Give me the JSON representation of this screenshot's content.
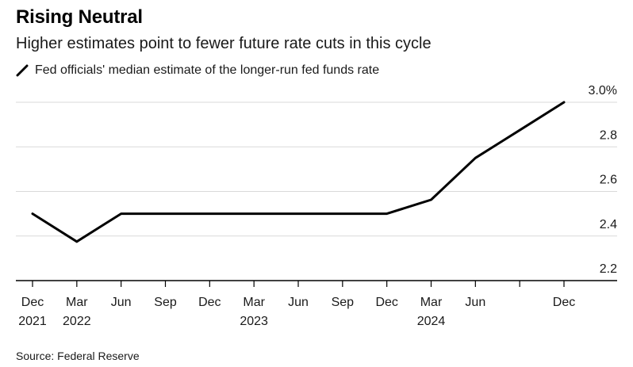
{
  "header": {
    "title": "Rising Neutral",
    "subtitle": "Higher estimates point to fewer future rate cuts in this cycle",
    "legend_label": "Fed officials' median estimate of the longer-run fed funds rate"
  },
  "footer": {
    "source": "Source: Federal Reserve"
  },
  "colors": {
    "line": "#000000",
    "grid": "#d9d9d9",
    "axis": "#000000"
  },
  "chart_data": {
    "type": "line",
    "title": "Rising Neutral",
    "subtitle": "Higher estimates point to fewer future rate cuts in this cycle",
    "xlabel": "",
    "ylabel": "",
    "ylim": [
      2.2,
      3.0
    ],
    "y_ticks": [
      {
        "value": 3.0,
        "label": "3.0%"
      },
      {
        "value": 2.8,
        "label": "2.8"
      },
      {
        "value": 2.6,
        "label": "2.6"
      },
      {
        "value": 2.4,
        "label": "2.4"
      },
      {
        "value": 2.2,
        "label": "2.2"
      }
    ],
    "x_ticks": [
      {
        "index": 0,
        "month": "Dec",
        "year": "2021"
      },
      {
        "index": 1,
        "month": "Mar",
        "year": "2022"
      },
      {
        "index": 2,
        "month": "Jun",
        "year": ""
      },
      {
        "index": 3,
        "month": "Sep",
        "year": ""
      },
      {
        "index": 4,
        "month": "Dec",
        "year": ""
      },
      {
        "index": 5,
        "month": "Mar",
        "year": "2023"
      },
      {
        "index": 6,
        "month": "Jun",
        "year": ""
      },
      {
        "index": 7,
        "month": "Sep",
        "year": ""
      },
      {
        "index": 8,
        "month": "Dec",
        "year": ""
      },
      {
        "index": 9,
        "month": "Mar",
        "year": "2024"
      },
      {
        "index": 10,
        "month": "Jun",
        "year": ""
      },
      {
        "index": 11,
        "month": "",
        "year": ""
      },
      {
        "index": 12,
        "month": "Dec",
        "year": ""
      }
    ],
    "x_range": [
      0,
      12
    ],
    "legend": {
      "position": "top-left"
    },
    "grid": true,
    "series": [
      {
        "name": "Fed officials' median estimate of the longer-run fed funds rate",
        "x": [
          0,
          1,
          2,
          3,
          4,
          5,
          6,
          7,
          8,
          9,
          10,
          11,
          12
        ],
        "values": [
          2.5,
          2.375,
          2.5,
          2.5,
          2.5,
          2.5,
          2.5,
          2.5,
          2.5,
          2.5625,
          2.75,
          2.875,
          3.0
        ]
      }
    ]
  }
}
